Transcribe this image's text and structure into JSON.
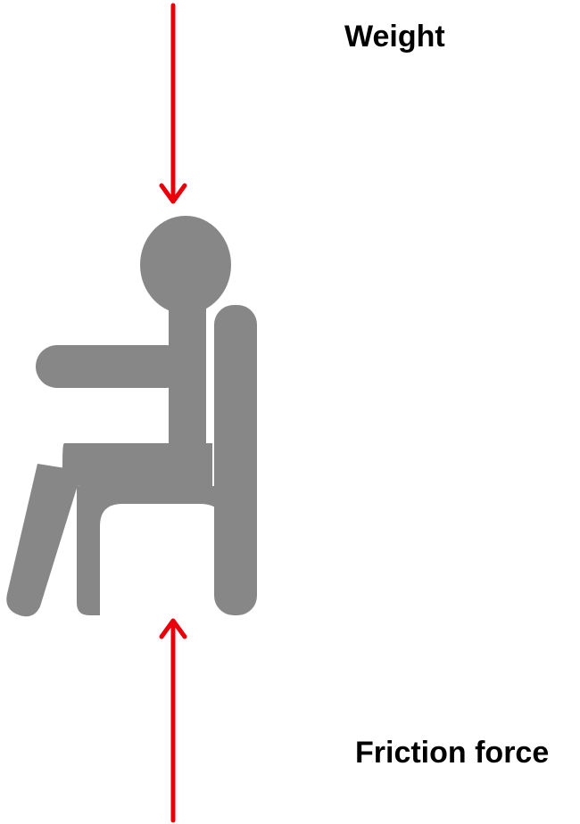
{
  "labels": {
    "weight": "Weight",
    "friction": "Friction force"
  },
  "icons": {
    "figure": "seated-person-on-chair-icon",
    "weight_arrow": "arrow-down-icon",
    "friction_arrow": "arrow-up-icon"
  },
  "colors": {
    "figure": "#878787",
    "arrow": "#e8000b",
    "text": "#000000",
    "background": "#ffffff"
  }
}
